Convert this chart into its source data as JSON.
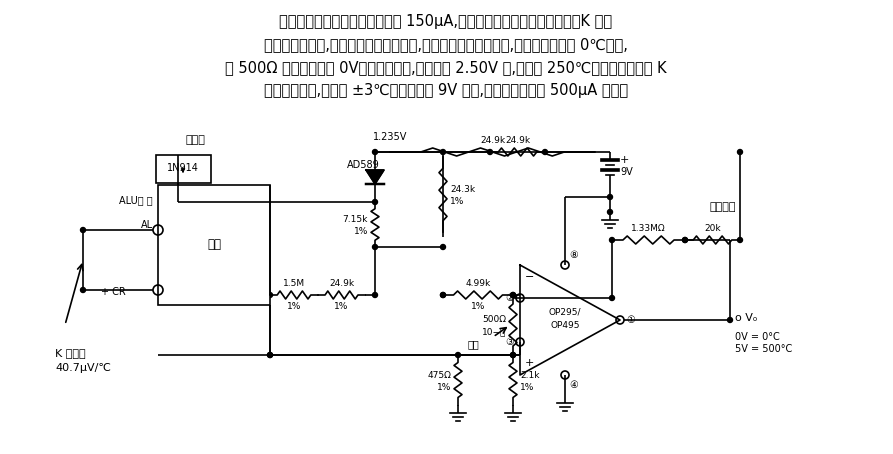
{
  "bg_color": "#ffffff",
  "text_color": "#000000",
  "paragraph": [
    "电路中每个放大器的静态电流为 150μA,用于装有电池的温度测量仪器。K 型热",
    "偶放人隔热笱中,热偶一端放自然环境中,并通过放大器。校准时,热电偶测量结在 0℃冰中,",
    "调 500Ω 电阵供输出为 0V。满量程调节,使输出为 2.50V 时,温度为 250℃。在温度范围内 K",
    "型热偶很精确,精度为 ±3℃。工作时用 9V 电池,电路驱动电流在 500μA 以下。"
  ],
  "figsize": [
    8.93,
    4.54
  ],
  "dpi": 100
}
